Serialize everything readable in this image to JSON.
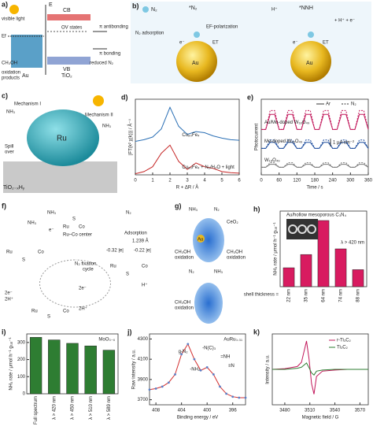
{
  "panels": {
    "a": {
      "texts": [
        "a)",
        "visible light",
        "E",
        "CB",
        "OV states",
        "π antibonding",
        "π bonding",
        "reduced N₂",
        "Ef",
        "VB",
        "CH₃OH",
        "oxidation",
        "products",
        "Au",
        "TiO₂"
      ]
    },
    "b": {
      "texts": [
        "b)",
        "N₂",
        "*N₂",
        "*NNH",
        "N₂ adsorption",
        "EF-polarization",
        "ET",
        "ET",
        "e⁻",
        "e⁻",
        "H⁺",
        "+ H⁺ + e⁻",
        "Au",
        "Au"
      ]
    },
    "c": {
      "texts": [
        "c)",
        "Mechanism I",
        "Mechanism II",
        "NH₃",
        "NH₃",
        "Ru",
        "Spill",
        "over",
        "TiO₂₋ₓHᵧ"
      ]
    },
    "f": {
      "texts": [
        "f)",
        "Ru–Co center",
        "Adsorption",
        "1.239 Å",
        "-0.32 |e|",
        "-0.22 |e|",
        "N₂ fixation",
        "cycle",
        "NH₃",
        "NH₃",
        "2e⁻",
        "2H⁺",
        "2e⁻",
        "2H⁺",
        "H⁺",
        "e⁻",
        "Ru",
        "Co",
        "Ru",
        "Co",
        "Ru",
        "Co",
        "Ru",
        "Co",
        "S",
        "S",
        "S",
        "S",
        "N₂"
      ]
    },
    "g": {
      "texts": [
        "g)",
        "NH₃",
        "N₂",
        "CeO₂",
        "Au",
        "CH₃OH",
        "oxidation",
        "CH₃OH",
        "oxidation",
        "N₂",
        "NH₃",
        "CH₃OH",
        "oxidation"
      ]
    }
  },
  "chart_data": [
    {
      "type": "line",
      "panel": "d)",
      "xlabel": "R + ΔR / Å",
      "ylabel": "|FT(k² χ(k))| / Å⁻⁴",
      "x": [
        0,
        0.5,
        1,
        1.5,
        2,
        2.5,
        3,
        3.5,
        4,
        4.5,
        5,
        5.5,
        6
      ],
      "xlim": [
        0,
        6
      ],
      "xticks": [
        0,
        1,
        2,
        3,
        4,
        5,
        6
      ],
      "ylim": [
        0,
        14
      ],
      "series": [
        {
          "name": "Cu₈₀Fe₄",
          "color": "#2a6fb5",
          "values": [
            6.2,
            6.5,
            7,
            8.5,
            12.5,
            9,
            7.5,
            8,
            7.8,
            7.2,
            6.8,
            6.5,
            6.4
          ]
        },
        {
          "name": "Cu₈₀Fe₄ + N₂/H₂O + light",
          "color": "#c62828",
          "values": [
            0.2,
            0.6,
            1.5,
            4,
            5.5,
            2.5,
            1,
            2.2,
            1.5,
            1.2,
            0.6,
            0.4,
            0.3
          ]
        }
      ]
    },
    {
      "type": "photocurrent",
      "panel": "e)",
      "xlabel": "Time / s",
      "ylabel": "Photocurrent",
      "legend": [
        "Ar",
        "N₂"
      ],
      "scale_label": "1 μA cm⁻²",
      "x": [
        0,
        15,
        30,
        45,
        60,
        75,
        90,
        105,
        120,
        135,
        150,
        165,
        180,
        195,
        210,
        225,
        240,
        255,
        270,
        285,
        300,
        315,
        330,
        345,
        360
      ],
      "xlim": [
        0,
        360
      ],
      "xticks": [
        0,
        60,
        120,
        180,
        240,
        300,
        360
      ],
      "ylim": [
        0,
        10
      ],
      "groups": [
        {
          "label": "Au/Mo-doped W₁₈O₄₉",
          "color": "#c2185b",
          "Ar": [
            6,
            6,
            8,
            8,
            6,
            6,
            8,
            8,
            6,
            6,
            8,
            8,
            6,
            6,
            8,
            8,
            6,
            6,
            8,
            8,
            6,
            6,
            8,
            8,
            6
          ],
          "N2": [
            6,
            6,
            8.5,
            8.5,
            6,
            6,
            8.5,
            8.5,
            6,
            6,
            8.5,
            8.5,
            6,
            6,
            8.5,
            8.5,
            6,
            6,
            8.5,
            8.5,
            6,
            6,
            8.5,
            8.5,
            6
          ]
        },
        {
          "label": "Mo-doped W₁₈O₄₉",
          "color": "#1f4e9e",
          "Ar": [
            3.5,
            3.5,
            4.3,
            4.3,
            3.5,
            3.5,
            4.3,
            4.3,
            3.5,
            3.5,
            4.3,
            4.3,
            3.5,
            3.5,
            4.3,
            4.3,
            3.5,
            3.5,
            4.3,
            4.3,
            3.5,
            3.5,
            4.3,
            4.3,
            3.5
          ],
          "N2": [
            3.5,
            3.5,
            4.6,
            4.6,
            3.5,
            3.5,
            4.6,
            4.6,
            3.5,
            3.5,
            4.6,
            4.6,
            3.5,
            3.5,
            4.6,
            4.6,
            3.5,
            3.5,
            4.6,
            4.6,
            3.5,
            3.5,
            4.6,
            4.6,
            3.5
          ]
        },
        {
          "label": "W₁₈O₄₉",
          "color": "#777777",
          "Ar": [
            1,
            1,
            1.4,
            1.4,
            1,
            1,
            1.4,
            1.4,
            1,
            1,
            1.4,
            1.4,
            1,
            1,
            1.4,
            1.4,
            1,
            1,
            1.4,
            1.4,
            1,
            1,
            1.4,
            1.4,
            1
          ],
          "N2": [
            1,
            1,
            1.6,
            1.6,
            1,
            1,
            1.6,
            1.6,
            1,
            1,
            1.6,
            1.6,
            1,
            1,
            1.6,
            1.6,
            1,
            1,
            1.6,
            1.6,
            1,
            1,
            1.6,
            1.6,
            1
          ]
        }
      ]
    },
    {
      "type": "bar",
      "panel": "h)",
      "title": "Au/hollow mesoporous C₃N₄",
      "note": "λ > 420 nm",
      "xlabel": "shell thickness =",
      "ylabel": "NH₃ rate / μmol h⁻¹ gₜₐₜ⁻¹",
      "categories": [
        "22 nm",
        "35 nm",
        "64 nm",
        "74 nm",
        "88 nm"
      ],
      "values": [
        100,
        170,
        350,
        200,
        90
      ],
      "color": "#d81b60",
      "ylim": [
        0,
        400
      ]
    },
    {
      "type": "bar",
      "panel": "i)",
      "title": "MoO₃₋ₓ",
      "ylabel": "NH₃ rate / μmol h⁻¹ gₜₐₜ⁻¹",
      "categories": [
        "Full spectrum",
        "λ > 420 nm",
        "λ > 450 nm",
        "λ > 510 nm",
        "λ > 589 nm"
      ],
      "values": [
        330,
        315,
        295,
        280,
        255
      ],
      "color": "#2e7d32",
      "ylim": [
        0,
        350
      ],
      "yticks": [
        0,
        100,
        200,
        300
      ]
    },
    {
      "type": "xps",
      "panel": "j)",
      "title": "AuRu₀.₃₁",
      "xlabel": "Binding energy / eV",
      "ylabel": "Raw intensity / a.u.",
      "annotations": [
        "g-N₂",
        "-NH₂",
        "-N(C)₃",
        "=NH",
        "≡N"
      ],
      "x": [
        409,
        408,
        407,
        406,
        405,
        404,
        403,
        402,
        401,
        400,
        399,
        398,
        397,
        396,
        395,
        394
      ],
      "xlim": [
        409,
        394
      ],
      "xticks": [
        408,
        404,
        400,
        396
      ],
      "ylim": [
        3650,
        4350
      ],
      "yticks": [
        3700,
        3900,
        4100,
        4300
      ],
      "series": [
        {
          "name": "raw",
          "color": "#5b7fc7",
          "values": [
            3800,
            3810,
            3830,
            3870,
            3950,
            4150,
            4250,
            4100,
            3990,
            4020,
            3950,
            3830,
            3760,
            3730,
            3720,
            3720
          ]
        }
      ]
    },
    {
      "type": "line",
      "panel": "k)",
      "xlabel": "Magnetic field / G",
      "ylabel": "Intensity / a.u.",
      "x": [
        3465,
        3480,
        3495,
        3500,
        3503,
        3506,
        3509,
        3512,
        3515,
        3518,
        3525,
        3540,
        3555,
        3570,
        3580
      ],
      "xlim": [
        3465,
        3580
      ],
      "xticks": [
        3480,
        3510,
        3540,
        3570
      ],
      "ylim": [
        -10,
        10
      ],
      "legend_corner": "upper right",
      "series": [
        {
          "name": "r-Ti₃C₂",
          "color": "#c2185b",
          "values": [
            0,
            0.2,
            0.8,
            2,
            5,
            8,
            3,
            -4,
            -7,
            -2,
            -0.5,
            -0.2,
            0,
            0,
            0
          ]
        },
        {
          "name": "Ti₃C₂",
          "color": "#2e7d32",
          "values": [
            0,
            0,
            0.3,
            0.6,
            1.2,
            1.8,
            0.5,
            -1,
            -1.6,
            -0.5,
            -0.2,
            0,
            0,
            0,
            0
          ]
        }
      ]
    }
  ]
}
